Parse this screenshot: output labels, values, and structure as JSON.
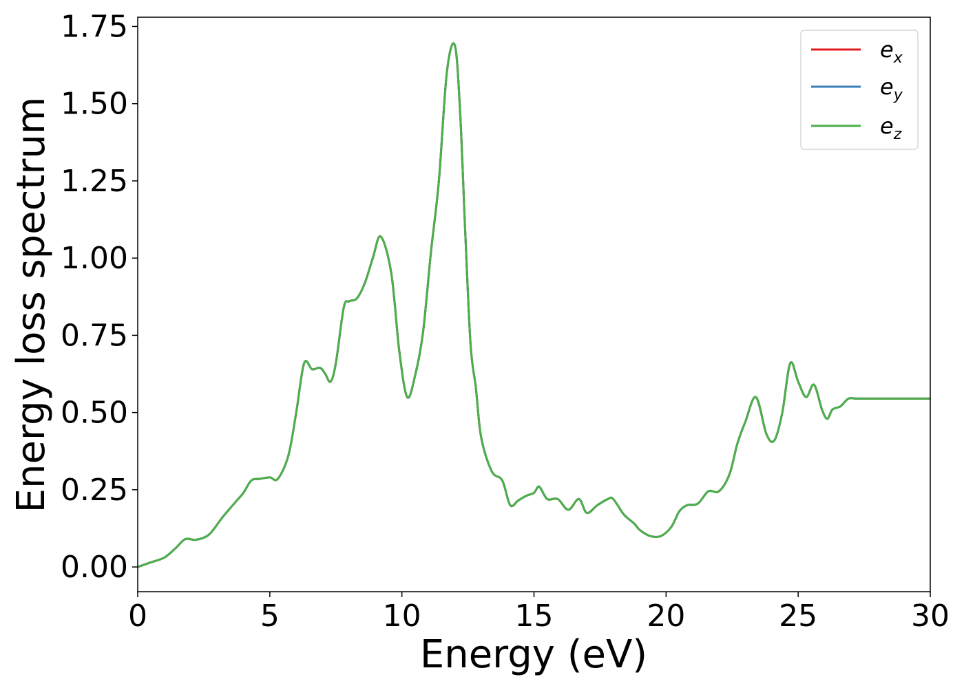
{
  "chart_data": {
    "type": "line",
    "xlabel": "Energy (eV)",
    "ylabel": "Energy loss spectrum",
    "xlim": [
      0,
      30
    ],
    "ylim": [
      -0.08,
      1.78
    ],
    "xticks": [
      0,
      5,
      10,
      15,
      20,
      25,
      30
    ],
    "xtick_labels": [
      "0",
      "5",
      "10",
      "15",
      "20",
      "25",
      "30"
    ],
    "yticks": [
      0,
      0.25,
      0.5,
      0.75,
      1.0,
      1.25,
      1.5,
      1.75
    ],
    "ytick_labels": [
      "0.00",
      "0.25",
      "0.50",
      "0.75",
      "1.00",
      "1.25",
      "1.50",
      "1.75"
    ],
    "grid": false,
    "legend_position": "top-right",
    "x": [
      0,
      0.5,
      1.0,
      1.4,
      1.8,
      2.2,
      2.7,
      3.2,
      3.7,
      4.0,
      4.3,
      4.6,
      5.0,
      5.3,
      5.7,
      6.0,
      6.3,
      6.6,
      6.9,
      7.1,
      7.3,
      7.5,
      7.8,
      8.0,
      8.3,
      8.6,
      8.9,
      9.2,
      9.6,
      9.9,
      10.2,
      10.5,
      10.8,
      11.1,
      11.4,
      11.7,
      12.0,
      12.2,
      12.4,
      12.6,
      12.8,
      13.0,
      13.4,
      13.8,
      14.1,
      14.4,
      14.7,
      15.0,
      15.2,
      15.5,
      15.9,
      16.3,
      16.7,
      17.0,
      17.4,
      17.8,
      18.0,
      18.4,
      18.8,
      19.0,
      19.4,
      19.8,
      20.2,
      20.5,
      20.8,
      21.2,
      21.6,
      22.0,
      22.4,
      22.7,
      23.0,
      23.4,
      23.8,
      24.1,
      24.4,
      24.7,
      25.0,
      25.3,
      25.6,
      25.9,
      26.1,
      26.3,
      26.6,
      26.9,
      27.2,
      27.5,
      27.8,
      28.0,
      28.3,
      28.6,
      28.8,
      29.1,
      29.4,
      29.7,
      30.0
    ],
    "series": [
      {
        "name": "e_x",
        "color": "#e41a1c"
      },
      {
        "name": "e_y",
        "color": "#377eb8"
      },
      {
        "name": "e_z",
        "color": "#4daf4a"
      }
    ],
    "y": [
      0.0,
      0.015,
      0.03,
      0.058,
      0.09,
      0.088,
      0.105,
      0.16,
      0.21,
      0.24,
      0.28,
      0.285,
      0.29,
      0.285,
      0.36,
      0.5,
      0.66,
      0.64,
      0.645,
      0.625,
      0.6,
      0.66,
      0.84,
      0.86,
      0.87,
      0.92,
      1.0,
      1.07,
      0.95,
      0.7,
      0.55,
      0.62,
      0.76,
      1.02,
      1.25,
      1.6,
      1.69,
      1.48,
      1.08,
      0.72,
      0.58,
      0.42,
      0.31,
      0.28,
      0.2,
      0.215,
      0.23,
      0.24,
      0.26,
      0.22,
      0.22,
      0.185,
      0.22,
      0.175,
      0.2,
      0.22,
      0.22,
      0.17,
      0.14,
      0.12,
      0.1,
      0.1,
      0.13,
      0.18,
      0.2,
      0.205,
      0.245,
      0.245,
      0.3,
      0.4,
      0.47,
      0.55,
      0.43,
      0.41,
      0.5,
      0.66,
      0.6,
      0.55,
      0.59,
      0.51,
      0.48,
      0.51,
      0.52,
      0.545,
      0.545,
      0.545,
      0.545,
      0.545,
      0.545,
      0.545,
      0.545,
      0.545,
      0.545,
      0.545,
      0.545
    ],
    "legend_labels": {
      "x": {
        "base": "e",
        "sub": "x"
      },
      "y": {
        "base": "e",
        "sub": "y"
      },
      "z": {
        "base": "e",
        "sub": "z"
      }
    }
  }
}
